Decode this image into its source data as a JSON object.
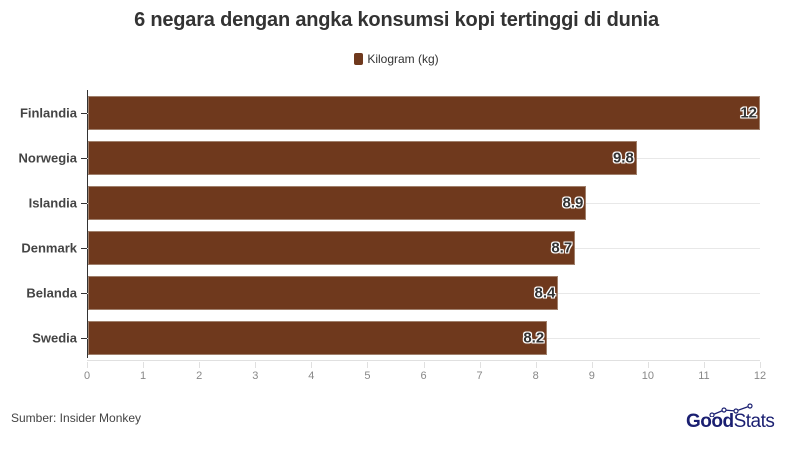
{
  "title": "6 negara dengan angka konsumsi kopi tertinggi di dunia",
  "legend": {
    "label": "Kilogram (kg)",
    "color": "#6f391d"
  },
  "source": "Sumber: Insider Monkey",
  "logo": {
    "part1": "Good",
    "part2": "Stats",
    "color": "#1a1f71"
  },
  "chart_data": {
    "type": "bar",
    "orientation": "horizontal",
    "title": "6 negara dengan angka konsumsi kopi tertinggi di dunia",
    "xlabel": "",
    "ylabel": "",
    "categories": [
      "Finlandia",
      "Norwegia",
      "Islandia",
      "Denmark",
      "Belanda",
      "Swedia"
    ],
    "series": [
      {
        "name": "Kilogram (kg)",
        "color": "#6f391d",
        "values": [
          12,
          9.8,
          8.9,
          8.7,
          8.4,
          8.2
        ]
      }
    ],
    "value_labels": [
      "12",
      "9.8",
      "8.9",
      "8.7",
      "8.4",
      "8.2"
    ],
    "xlim": [
      0,
      12
    ],
    "xticks": [
      "0",
      "1",
      "2",
      "3",
      "4",
      "5",
      "6",
      "7",
      "8",
      "9",
      "10",
      "11",
      "12"
    ],
    "grid": true,
    "legend_position": "top"
  }
}
